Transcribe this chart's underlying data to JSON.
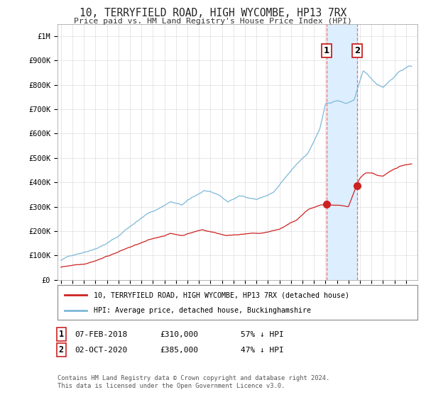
{
  "title": "10, TERRYFIELD ROAD, HIGH WYCOMBE, HP13 7RX",
  "subtitle": "Price paid vs. HM Land Registry's House Price Index (HPI)",
  "ylabel_ticks": [
    "£0",
    "£100K",
    "£200K",
    "£300K",
    "£400K",
    "£500K",
    "£600K",
    "£700K",
    "£800K",
    "£900K",
    "£1M"
  ],
  "ytick_values": [
    0,
    100000,
    200000,
    300000,
    400000,
    500000,
    600000,
    700000,
    800000,
    900000,
    1000000
  ],
  "ylim": [
    0,
    1050000
  ],
  "hpi_color": "#7db8d8",
  "price_color": "#cc2222",
  "marker1_date": 2018.08,
  "marker1_price": 310000,
  "marker2_date": 2020.75,
  "marker2_price": 385000,
  "legend_label_red": "10, TERRYFIELD ROAD, HIGH WYCOMBE, HP13 7RX (detached house)",
  "legend_label_blue": "HPI: Average price, detached house, Buckinghamshire",
  "table_row1": [
    "1",
    "07-FEB-2018",
    "£310,000",
    "57% ↓ HPI"
  ],
  "table_row2": [
    "2",
    "02-OCT-2020",
    "£385,000",
    "47% ↓ HPI"
  ],
  "footer": "Contains HM Land Registry data © Crown copyright and database right 2024.\nThis data is licensed under the Open Government Licence v3.0.",
  "background_color": "#ffffff",
  "grid_color": "#dddddd",
  "span_color": "#ddeeff",
  "vline_color": "#e87070"
}
